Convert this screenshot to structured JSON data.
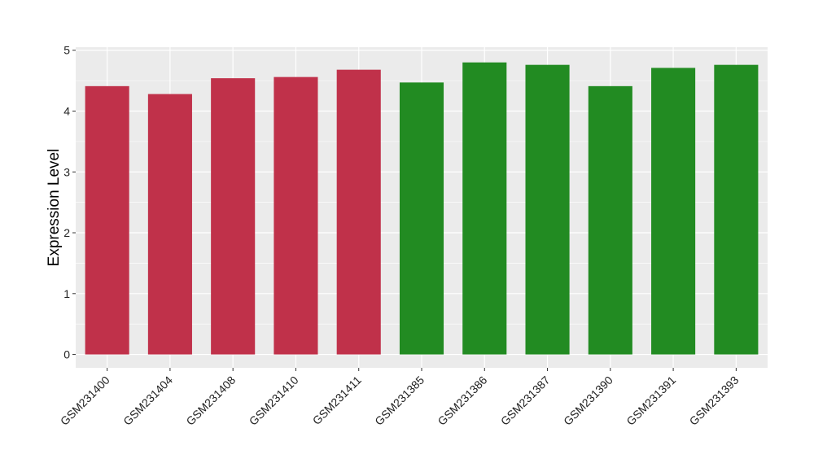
{
  "chart_data": {
    "type": "bar",
    "title": "",
    "xlabel": "",
    "ylabel": "Expression Level",
    "ylim": [
      -0.22,
      5.05
    ],
    "yticks": [
      0,
      1,
      2,
      3,
      4,
      5
    ],
    "grid": true,
    "legend": "none",
    "categories": [
      "GSM231400",
      "GSM231404",
      "GSM231408",
      "GSM231410",
      "GSM231411",
      "GSM231385",
      "GSM231386",
      "GSM231387",
      "GSM231390",
      "GSM231391",
      "GSM231393"
    ],
    "values": [
      4.41,
      4.28,
      4.54,
      4.56,
      4.68,
      4.47,
      4.8,
      4.76,
      4.41,
      4.71,
      4.76
    ],
    "bar_colors": [
      "#c0314a",
      "#c0314a",
      "#c0314a",
      "#c0314a",
      "#c0314a",
      "#228b22",
      "#228b22",
      "#228b22",
      "#228b22",
      "#228b22",
      "#228b22"
    ],
    "panel_background": "#ebebeb",
    "grid_color": "#ffffff"
  }
}
